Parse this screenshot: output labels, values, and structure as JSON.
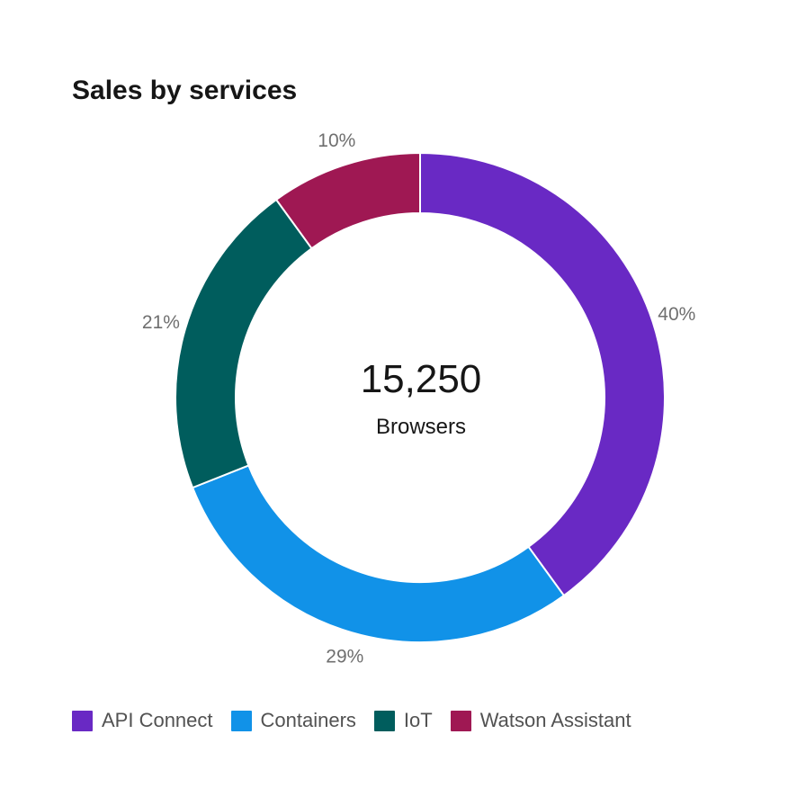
{
  "chart_data": {
    "type": "pie",
    "variant": "donut",
    "title": "Sales by services",
    "center": {
      "value": "15,250",
      "label": "Browsers"
    },
    "slices": [
      {
        "label": "API Connect",
        "value": 40,
        "display": "40%",
        "color": "#6929c4"
      },
      {
        "label": "Containers",
        "value": 29,
        "display": "29%",
        "color": "#1192e8"
      },
      {
        "label": "IoT",
        "value": 21,
        "display": "21%",
        "color": "#005d5d"
      },
      {
        "label": "Watson Assistant",
        "value": 10,
        "display": "10%",
        "color": "#9f1853"
      }
    ],
    "legend_position": "bottom-left"
  }
}
